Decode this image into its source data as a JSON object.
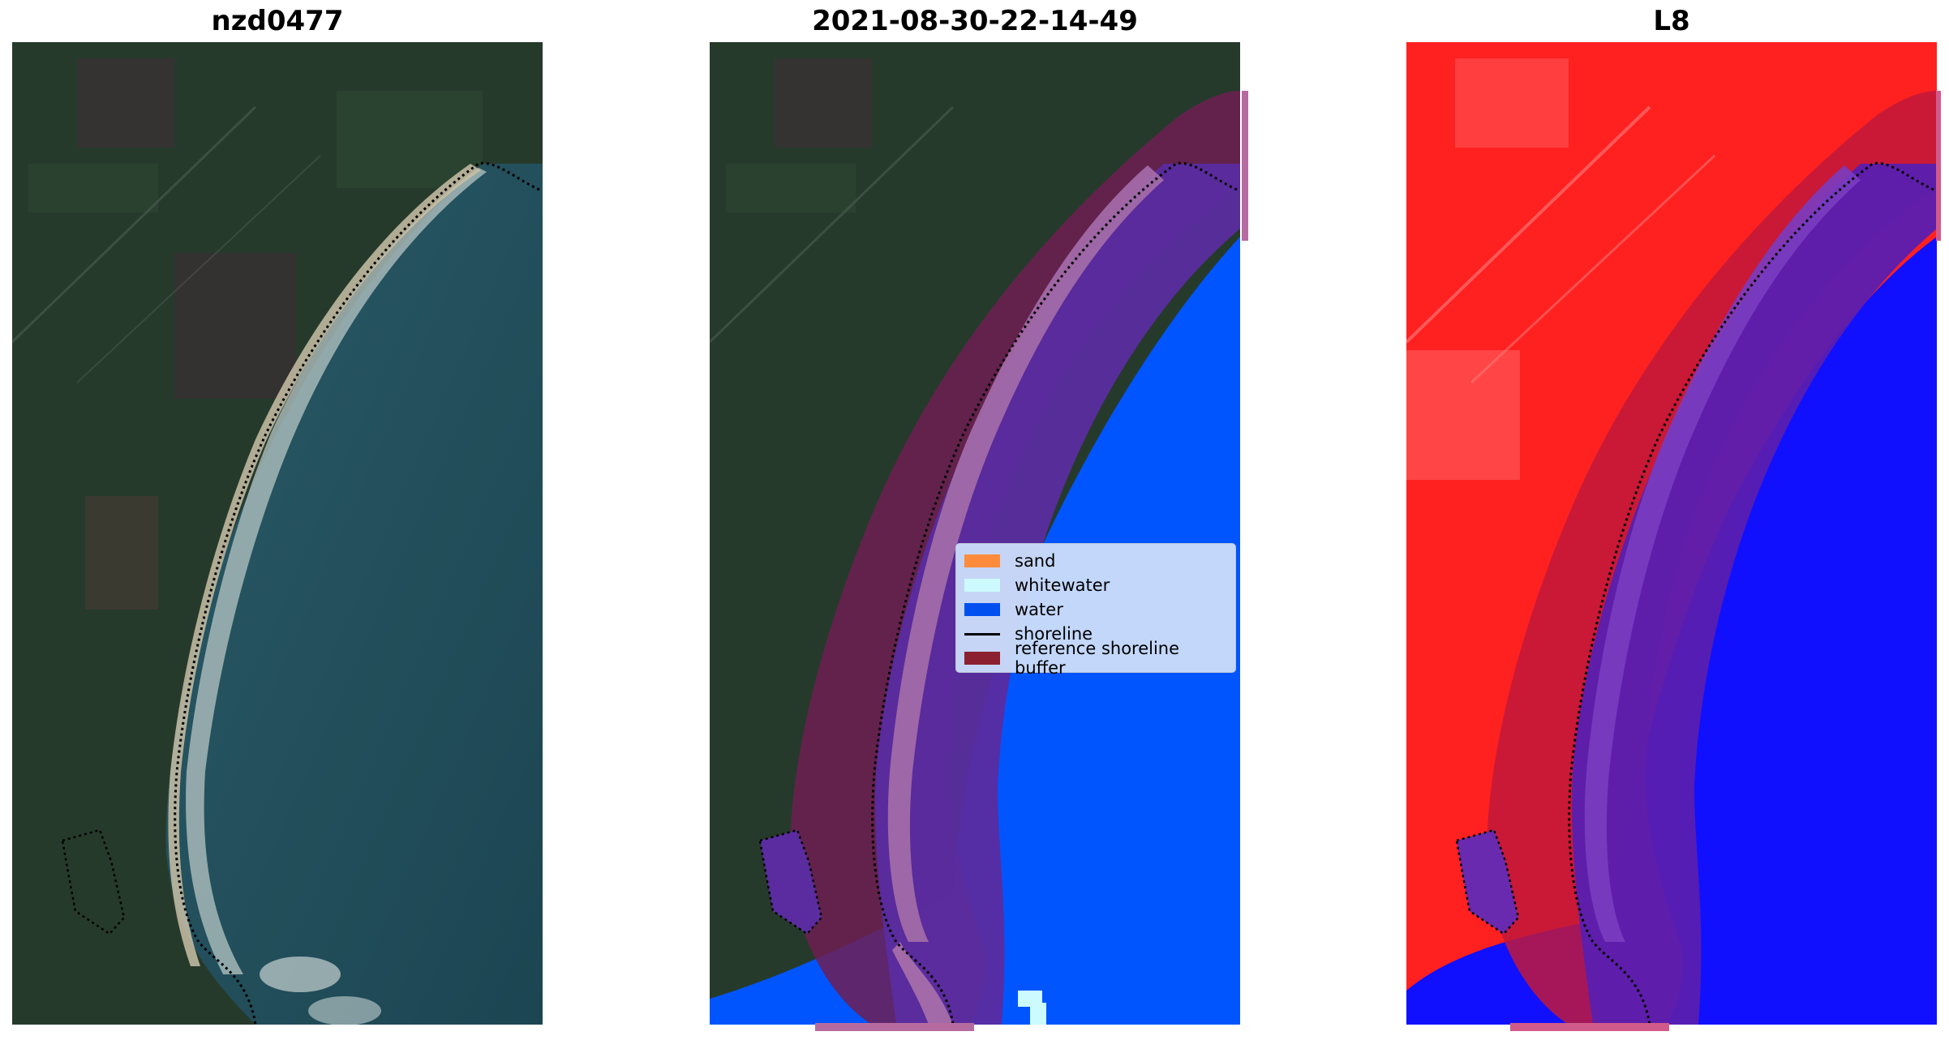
{
  "panels": [
    {
      "title": "nzd0477"
    },
    {
      "title": "2021-08-30-22-14-49"
    },
    {
      "title": "L8"
    }
  ],
  "legend": {
    "items": [
      {
        "label": "sand",
        "color": "#ff8c3c",
        "kind": "patch"
      },
      {
        "label": "whitewater",
        "color": "#ccfaff",
        "kind": "patch"
      },
      {
        "label": "water",
        "color": "#0050f0",
        "kind": "patch"
      },
      {
        "label": "shoreline",
        "color": "#000000",
        "kind": "line"
      },
      {
        "label": "reference shoreline buffer",
        "color": "#8b2030",
        "kind": "patch"
      }
    ]
  },
  "colors": {
    "satellite_land": "#2a3b2e",
    "satellite_sea": "#1e4a55",
    "water_class": "#0055ff",
    "buffer": "#6e1f52",
    "index_red": "#ff1a1a",
    "index_blue": "#1010ff"
  }
}
